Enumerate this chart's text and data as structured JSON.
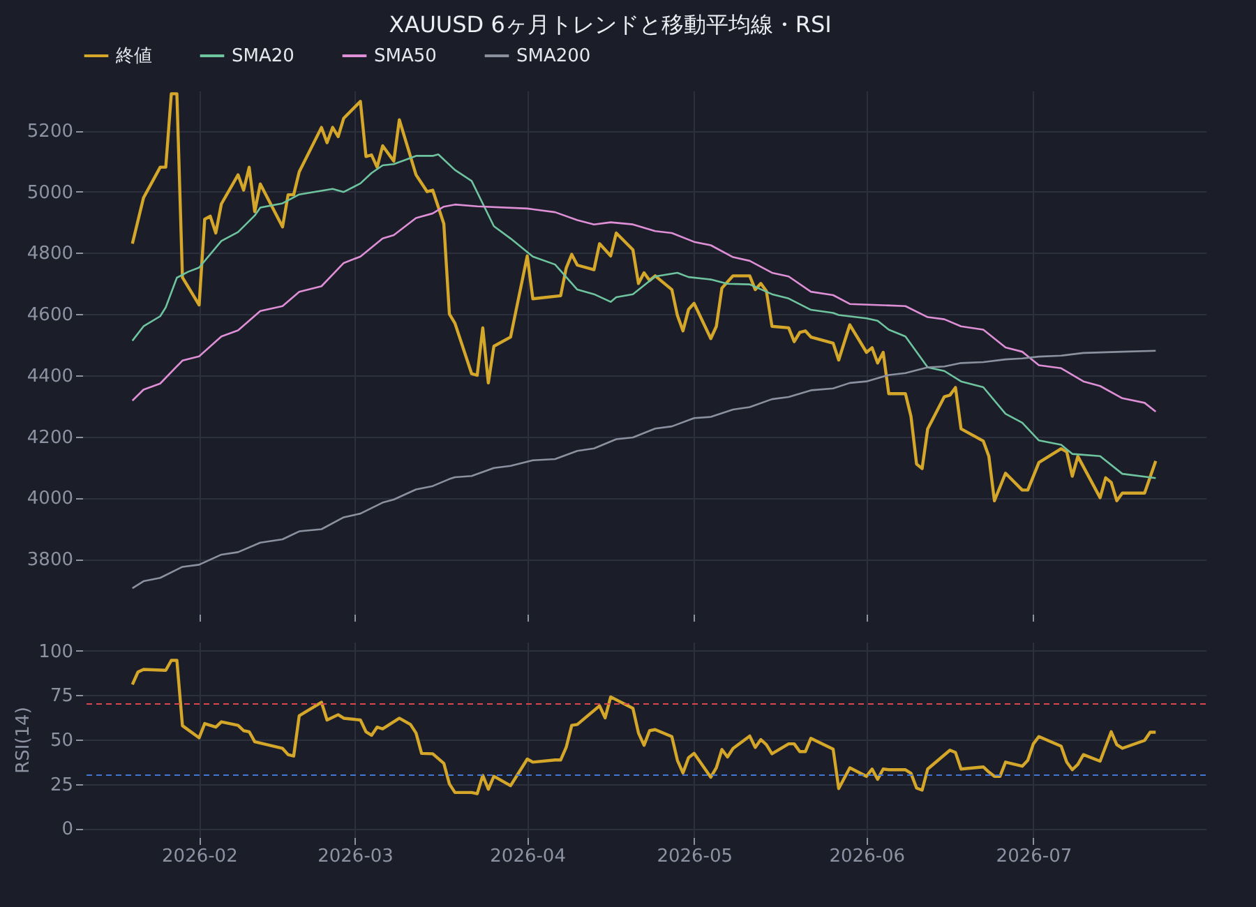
{
  "chart_data": [
    {
      "type": "line",
      "title": "XAUUSD 6ヶ月トレンドと移動平均線・RSI",
      "xlim": [
        "2026-01-11",
        "2026-08-01"
      ],
      "xticks": [
        "2026-02",
        "2026-03",
        "2026-04",
        "2026-05",
        "2026-06",
        "2026-07"
      ],
      "ylim": [
        3620,
        5330
      ],
      "yticks": [
        3800,
        4000,
        4200,
        4400,
        4600,
        4800,
        5000,
        5200
      ],
      "tick_labels": "y",
      "grid": true,
      "legend": "top left",
      "series": [
        {
          "name": "終値",
          "color": "#d4a62a",
          "x": [
            "2026-01-20",
            "2026-01-22",
            "2026-01-25",
            "2026-01-26",
            "2026-01-27",
            "2026-01-28",
            "2026-01-29",
            "2026-02-01",
            "2026-02-02",
            "2026-02-03",
            "2026-02-04",
            "2026-02-05",
            "2026-02-08",
            "2026-02-09",
            "2026-02-10",
            "2026-02-11",
            "2026-02-12",
            "2026-02-16",
            "2026-02-17",
            "2026-02-18",
            "2026-02-19",
            "2026-02-23",
            "2026-02-24",
            "2026-02-25",
            "2026-02-26",
            "2026-02-27",
            "2026-03-02",
            "2026-03-03",
            "2026-03-04",
            "2026-03-05",
            "2026-03-06",
            "2026-03-08",
            "2026-03-09",
            "2026-03-12",
            "2026-03-14",
            "2026-03-15",
            "2026-03-17",
            "2026-03-18",
            "2026-03-19",
            "2026-03-22",
            "2026-03-23",
            "2026-03-24",
            "2026-03-25",
            "2026-03-26",
            "2026-03-29",
            "2026-04-01",
            "2026-04-02",
            "2026-04-07",
            "2026-04-08",
            "2026-04-09",
            "2026-04-10",
            "2026-04-13",
            "2026-04-14",
            "2026-04-16",
            "2026-04-17",
            "2026-04-20",
            "2026-04-21",
            "2026-04-22",
            "2026-04-23",
            "2026-04-24",
            "2026-04-27",
            "2026-04-28",
            "2026-04-29",
            "2026-04-30",
            "2026-05-01",
            "2026-05-04",
            "2026-05-05",
            "2026-05-06",
            "2026-05-08",
            "2026-05-11",
            "2026-05-12",
            "2026-05-13",
            "2026-05-14",
            "2026-05-15",
            "2026-05-18",
            "2026-05-19",
            "2026-05-20",
            "2026-05-21",
            "2026-05-22",
            "2026-05-26",
            "2026-05-27",
            "2026-05-29",
            "2026-06-01",
            "2026-06-02",
            "2026-06-03",
            "2026-06-04",
            "2026-06-05",
            "2026-06-08",
            "2026-06-09",
            "2026-06-10",
            "2026-06-11",
            "2026-06-12",
            "2026-06-15",
            "2026-06-16",
            "2026-06-17",
            "2026-06-18",
            "2026-06-22",
            "2026-06-23",
            "2026-06-24",
            "2026-06-26",
            "2026-06-29",
            "2026-06-30",
            "2026-07-02",
            "2026-07-06",
            "2026-07-07",
            "2026-07-08",
            "2026-07-09",
            "2026-07-13",
            "2026-07-14",
            "2026-07-15",
            "2026-07-16",
            "2026-07-17",
            "2026-07-21",
            "2026-07-23"
          ],
          "values": [
            4830,
            4980,
            5080,
            5080,
            5320,
            5320,
            4720,
            4630,
            4910,
            4920,
            4865,
            4960,
            5055,
            5005,
            5080,
            4935,
            5025,
            4885,
            4990,
            4990,
            5065,
            5210,
            5160,
            5210,
            5180,
            5240,
            5295,
            5115,
            5120,
            5080,
            5150,
            5100,
            5235,
            5055,
            5000,
            5005,
            4895,
            4600,
            4570,
            4405,
            4400,
            4555,
            4375,
            4495,
            4525,
            4790,
            4650,
            4660,
            4750,
            4795,
            4760,
            4745,
            4830,
            4790,
            4865,
            4810,
            4700,
            4735,
            4710,
            4725,
            4680,
            4595,
            4545,
            4615,
            4635,
            4520,
            4560,
            4685,
            4725,
            4725,
            4680,
            4700,
            4675,
            4560,
            4555,
            4510,
            4540,
            4545,
            4525,
            4505,
            4450,
            4565,
            4475,
            4490,
            4440,
            4475,
            4340,
            4340,
            4265,
            4110,
            4095,
            4225,
            4330,
            4335,
            4360,
            4225,
            4185,
            4135,
            3990,
            4080,
            4025,
            4025,
            4115,
            4160,
            4150,
            4070,
            4135,
            4000,
            4065,
            4050,
            3990,
            4015,
            4015,
            4120
          ]
        },
        {
          "name": "SMA20",
          "color": "#6fc4a0",
          "x": [
            "2026-01-20",
            "2026-01-22",
            "2026-01-25",
            "2026-01-26",
            "2026-01-28",
            "2026-01-30",
            "2026-02-01",
            "2026-02-05",
            "2026-02-08",
            "2026-02-11",
            "2026-02-12",
            "2026-02-16",
            "2026-02-19",
            "2026-02-25",
            "2026-02-27",
            "2026-03-02",
            "2026-03-04",
            "2026-03-06",
            "2026-03-08",
            "2026-03-12",
            "2026-03-15",
            "2026-03-16",
            "2026-03-19",
            "2026-03-22",
            "2026-03-26",
            "2026-03-29",
            "2026-04-02",
            "2026-04-06",
            "2026-04-10",
            "2026-04-13",
            "2026-04-16",
            "2026-04-17",
            "2026-04-20",
            "2026-04-24",
            "2026-04-28",
            "2026-04-30",
            "2026-05-04",
            "2026-05-07",
            "2026-05-11",
            "2026-05-15",
            "2026-05-18",
            "2026-05-22",
            "2026-05-26",
            "2026-05-27",
            "2026-06-01",
            "2026-06-03",
            "2026-06-05",
            "2026-06-08",
            "2026-06-12",
            "2026-06-15",
            "2026-06-18",
            "2026-06-22",
            "2026-06-26",
            "2026-06-29",
            "2026-07-02",
            "2026-07-06",
            "2026-07-08",
            "2026-07-13",
            "2026-07-17",
            "2026-07-23"
          ],
          "values": [
            4513,
            4560,
            4593,
            4622,
            4719,
            4738,
            4752,
            4839,
            4868,
            4922,
            4948,
            4962,
            4991,
            5009,
            4999,
            5027,
            5061,
            5086,
            5090,
            5117,
            5117,
            5122,
            5071,
            5035,
            4887,
            4847,
            4788,
            4762,
            4680,
            4665,
            4640,
            4655,
            4665,
            4723,
            4735,
            4721,
            4713,
            4699,
            4697,
            4665,
            4651,
            4614,
            4604,
            4597,
            4586,
            4578,
            4549,
            4527,
            4426,
            4414,
            4380,
            4361,
            4274,
            4245,
            4187,
            4173,
            4143,
            4136,
            4078,
            4064
          ]
        },
        {
          "name": "SMA50",
          "color": "#de8fd6",
          "x": [
            "2026-01-20",
            "2026-01-22",
            "2026-01-25",
            "2026-01-29",
            "2026-02-01",
            "2026-02-05",
            "2026-02-08",
            "2026-02-12",
            "2026-02-16",
            "2026-02-19",
            "2026-02-23",
            "2026-02-27",
            "2026-03-02",
            "2026-03-06",
            "2026-03-08",
            "2026-03-12",
            "2026-03-15",
            "2026-03-17",
            "2026-03-19",
            "2026-03-23",
            "2026-04-01",
            "2026-04-06",
            "2026-04-10",
            "2026-04-13",
            "2026-04-16",
            "2026-04-20",
            "2026-04-24",
            "2026-04-27",
            "2026-05-01",
            "2026-05-04",
            "2026-05-08",
            "2026-05-11",
            "2026-05-15",
            "2026-05-18",
            "2026-05-22",
            "2026-05-26",
            "2026-05-29",
            "2026-06-04",
            "2026-06-08",
            "2026-06-12",
            "2026-06-15",
            "2026-06-18",
            "2026-06-22",
            "2026-06-26",
            "2026-06-29",
            "2026-07-02",
            "2026-07-06",
            "2026-07-10",
            "2026-07-13",
            "2026-07-17",
            "2026-07-21",
            "2026-07-23"
          ],
          "values": [
            4317,
            4353,
            4373,
            4448,
            4462,
            4527,
            4547,
            4610,
            4626,
            4673,
            4691,
            4767,
            4788,
            4847,
            4858,
            4914,
            4929,
            4951,
            4958,
            4952,
            4945,
            4933,
            4907,
            4893,
            4900,
            4893,
            4871,
            4865,
            4836,
            4825,
            4786,
            4774,
            4735,
            4723,
            4673,
            4662,
            4633,
            4629,
            4626,
            4590,
            4583,
            4560,
            4549,
            4491,
            4477,
            4433,
            4423,
            4380,
            4365,
            4325,
            4310,
            4281
          ]
        },
        {
          "name": "SMA200",
          "color": "#8c91a0",
          "x": [
            "2026-01-20",
            "2026-01-22",
            "2026-01-25",
            "2026-01-29",
            "2026-02-01",
            "2026-02-05",
            "2026-02-08",
            "2026-02-12",
            "2026-02-16",
            "2026-02-19",
            "2026-02-23",
            "2026-02-27",
            "2026-03-02",
            "2026-03-06",
            "2026-03-08",
            "2026-03-12",
            "2026-03-15",
            "2026-03-18",
            "2026-03-19",
            "2026-03-22",
            "2026-03-26",
            "2026-03-29",
            "2026-04-02",
            "2026-04-06",
            "2026-04-10",
            "2026-04-13",
            "2026-04-17",
            "2026-04-20",
            "2026-04-24",
            "2026-04-27",
            "2026-05-01",
            "2026-05-04",
            "2026-05-08",
            "2026-05-11",
            "2026-05-15",
            "2026-05-18",
            "2026-05-22",
            "2026-05-26",
            "2026-05-29",
            "2026-06-01",
            "2026-06-05",
            "2026-06-08",
            "2026-06-12",
            "2026-06-15",
            "2026-06-18",
            "2026-06-22",
            "2026-06-26",
            "2026-06-29",
            "2026-07-02",
            "2026-07-06",
            "2026-07-10",
            "2026-07-17",
            "2026-07-23"
          ],
          "values": [
            3704,
            3727,
            3738,
            3774,
            3781,
            3814,
            3822,
            3853,
            3864,
            3890,
            3897,
            3936,
            3948,
            3984,
            3994,
            4027,
            4038,
            4061,
            4067,
            4071,
            4097,
            4104,
            4122,
            4126,
            4153,
            4161,
            4191,
            4197,
            4226,
            4233,
            4260,
            4264,
            4288,
            4296,
            4322,
            4329,
            4351,
            4357,
            4375,
            4380,
            4401,
            4407,
            4426,
            4429,
            4440,
            4443,
            4452,
            4455,
            4461,
            4464,
            4473,
            4477,
            4480
          ]
        }
      ]
    },
    {
      "type": "line",
      "ylabel": "RSI(14)",
      "xlim": [
        "2026-01-11",
        "2026-08-01"
      ],
      "xticks": [
        "2026-02",
        "2026-03",
        "2026-04",
        "2026-05",
        "2026-06",
        "2026-07"
      ],
      "ylim": [
        -5,
        105
      ],
      "yticks": [
        0,
        25,
        50,
        75,
        100
      ],
      "grid": true,
      "ref_lines": [
        {
          "axis": "y",
          "value": 70,
          "color": "#d9474f",
          "line_style": "dashed"
        },
        {
          "axis": "y",
          "value": 30,
          "color": "#4477d4",
          "line_style": "dashed"
        }
      ],
      "series": [
        {
          "color": "#d4a62a",
          "x": [
            "2026-01-20",
            "2026-01-21",
            "2026-01-22",
            "2026-01-26",
            "2026-01-27",
            "2026-01-28",
            "2026-01-29",
            "2026-02-01",
            "2026-02-02",
            "2026-02-04",
            "2026-02-05",
            "2026-02-08",
            "2026-02-09",
            "2026-02-10",
            "2026-02-11",
            "2026-02-16",
            "2026-02-17",
            "2026-02-18",
            "2026-02-19",
            "2026-02-23",
            "2026-02-24",
            "2026-02-26",
            "2026-02-27",
            "2026-03-02",
            "2026-03-03",
            "2026-03-04",
            "2026-03-05",
            "2026-03-06",
            "2026-03-09",
            "2026-03-11",
            "2026-03-12",
            "2026-03-13",
            "2026-03-15",
            "2026-03-17",
            "2026-03-18",
            "2026-03-19",
            "2026-03-22",
            "2026-03-23",
            "2026-03-24",
            "2026-03-25",
            "2026-03-26",
            "2026-03-29",
            "2026-04-01",
            "2026-04-02",
            "2026-04-06",
            "2026-04-07",
            "2026-04-08",
            "2026-04-09",
            "2026-04-10",
            "2026-04-14",
            "2026-04-15",
            "2026-04-16",
            "2026-04-20",
            "2026-04-21",
            "2026-04-22",
            "2026-04-23",
            "2026-04-24",
            "2026-04-27",
            "2026-04-28",
            "2026-04-29",
            "2026-04-30",
            "2026-05-01",
            "2026-05-04",
            "2026-05-05",
            "2026-05-06",
            "2026-05-07",
            "2026-05-08",
            "2026-05-11",
            "2026-05-12",
            "2026-05-13",
            "2026-05-14",
            "2026-05-15",
            "2026-05-18",
            "2026-05-19",
            "2026-05-20",
            "2026-05-21",
            "2026-05-22",
            "2026-05-26",
            "2026-05-27",
            "2026-05-29",
            "2026-06-01",
            "2026-06-02",
            "2026-06-03",
            "2026-06-04",
            "2026-06-05",
            "2026-06-08",
            "2026-06-09",
            "2026-06-10",
            "2026-06-11",
            "2026-06-12",
            "2026-06-16",
            "2026-06-17",
            "2026-06-18",
            "2026-06-22",
            "2026-06-23",
            "2026-06-24",
            "2026-06-25",
            "2026-06-26",
            "2026-06-29",
            "2026-06-30",
            "2026-07-01",
            "2026-07-02",
            "2026-07-06",
            "2026-07-07",
            "2026-07-08",
            "2026-07-09",
            "2026-07-10",
            "2026-07-13",
            "2026-07-15",
            "2026-07-16",
            "2026-07-17",
            "2026-07-21",
            "2026-07-22",
            "2026-07-23"
          ],
          "values": [
            81,
            88,
            89.5,
            89,
            94.6,
            94.6,
            57.8,
            51,
            59,
            57,
            60,
            58,
            55,
            54.4,
            48.8,
            45,
            41.5,
            40.7,
            63.4,
            71,
            61,
            64,
            62,
            61,
            54.4,
            52.4,
            57,
            56,
            62,
            58.5,
            53.7,
            42.2,
            42,
            36.6,
            25,
            20.2,
            20.2,
            19.5,
            29.8,
            22,
            29.3,
            24,
            39,
            37.3,
            38.5,
            38.5,
            45.6,
            58,
            58.5,
            69,
            62.2,
            74,
            67.6,
            53.7,
            46.8,
            55,
            55.6,
            51.7,
            38.3,
            31.2,
            39.8,
            42.2,
            28.8,
            34.1,
            44.4,
            40.2,
            45,
            52,
            45.6,
            50,
            47.1,
            42,
            47.6,
            47.6,
            43.2,
            43.2,
            50.7,
            44.6,
            22.4,
            34.1,
            29.3,
            33.4,
            27.6,
            33.4,
            33,
            33,
            31,
            22.7,
            21.5,
            33.4,
            44,
            42.7,
            33.4,
            34.6,
            31.7,
            29.3,
            29.3,
            37.3,
            35,
            38.3,
            47.6,
            51.7,
            46.3,
            37.3,
            33,
            36,
            41.5,
            37.8,
            54.4,
            47.1,
            45.1,
            49.5,
            54.1,
            54.1
          ]
        }
      ]
    }
  ]
}
